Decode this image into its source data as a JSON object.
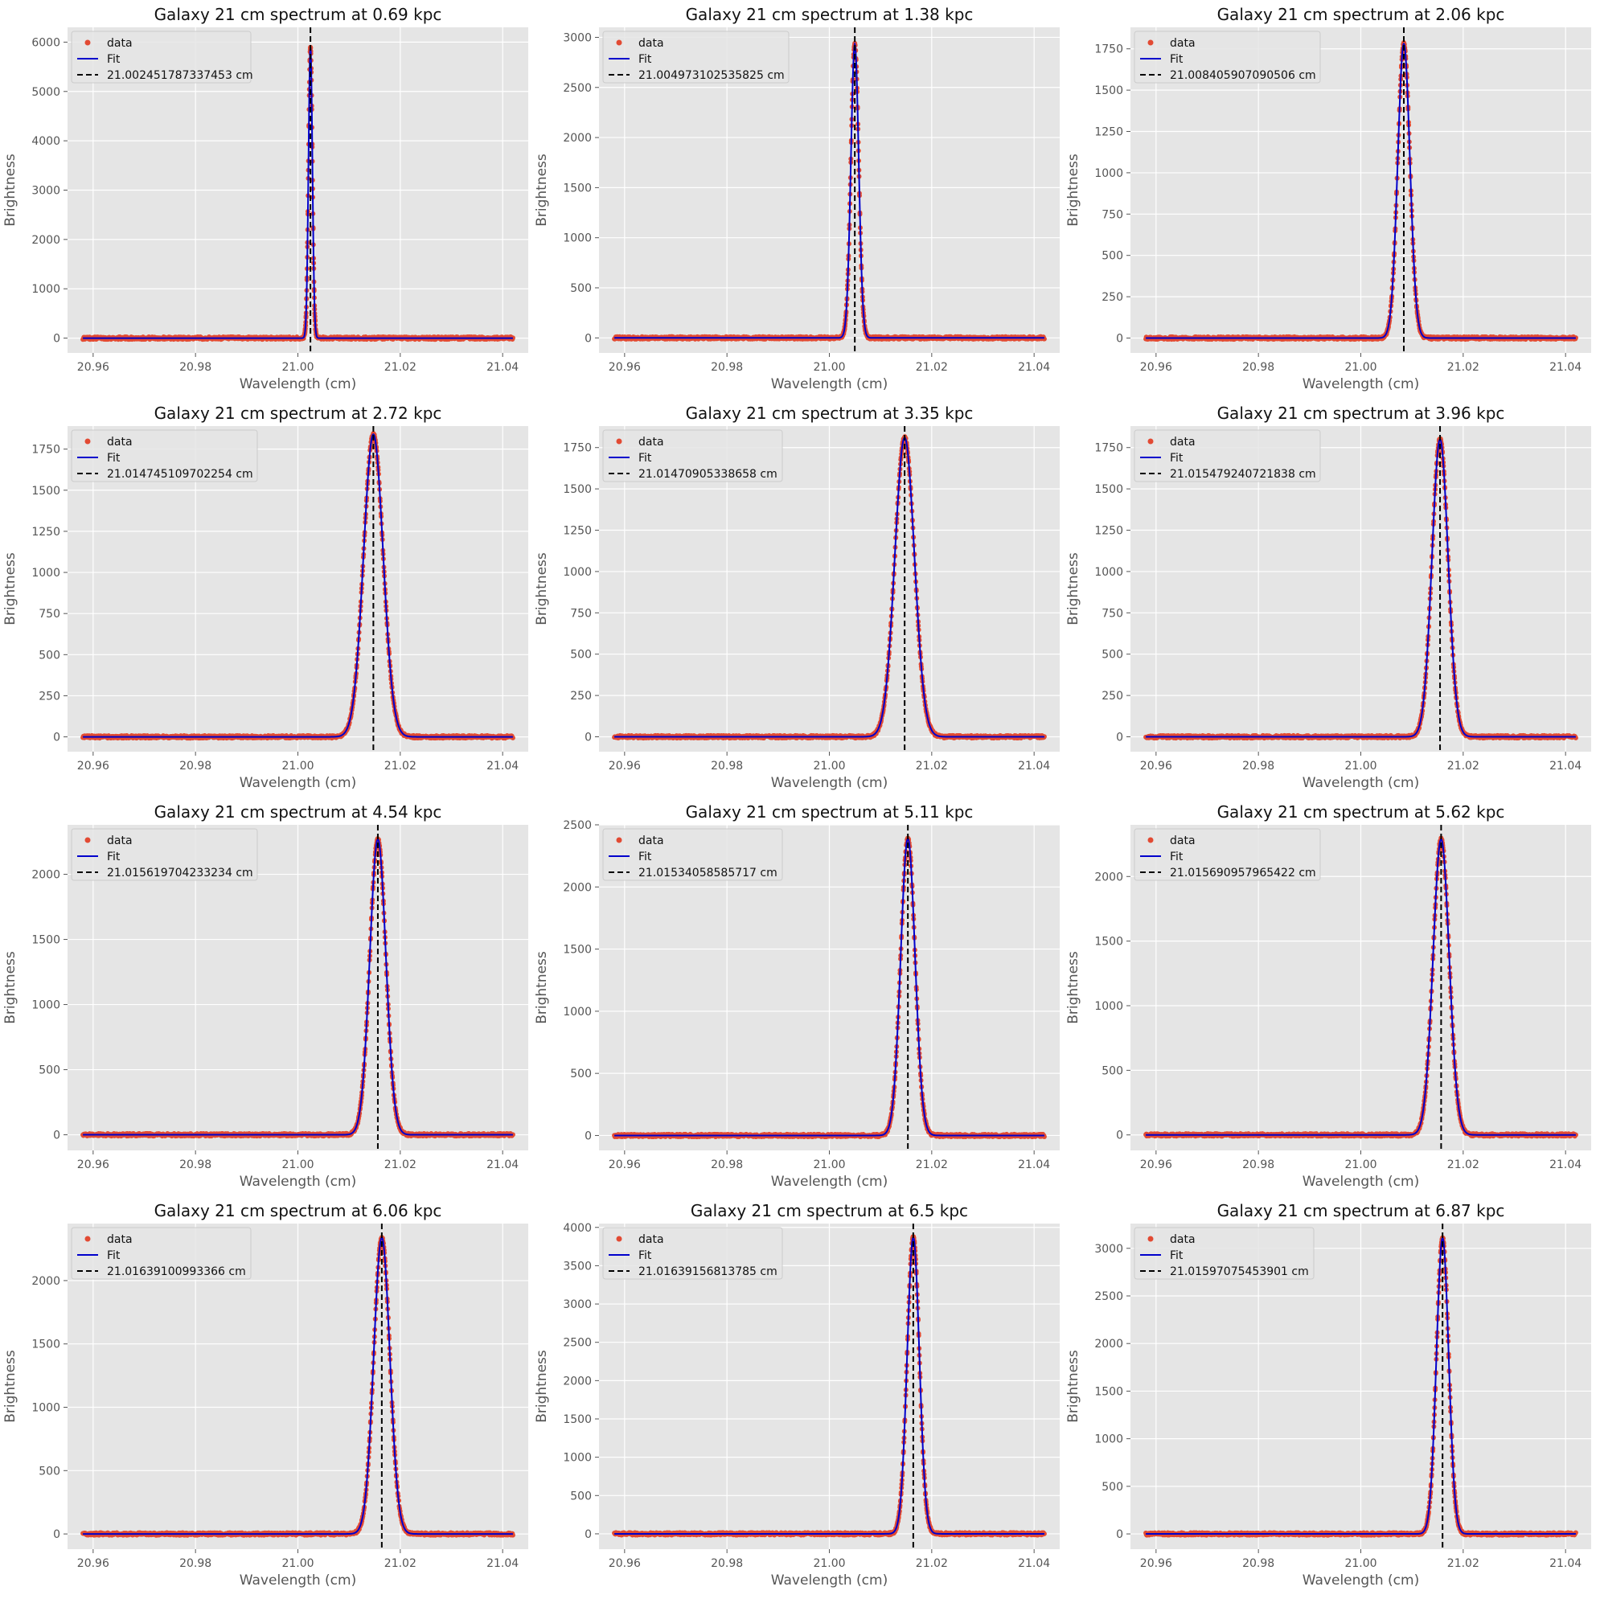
{
  "chart_data": {
    "type": "scatter",
    "shared": {
      "xlabel": "Wavelength (cm)",
      "ylabel": "Brightness",
      "xlim": [
        20.955,
        21.045
      ],
      "xticks": [
        20.96,
        20.98,
        21.0,
        21.02,
        21.04
      ],
      "grid": true,
      "legend_position": "top-left",
      "legend": [
        "data",
        "Fit"
      ],
      "sample_range": [
        20.958,
        21.042
      ],
      "colors": {
        "data": "#E24A33",
        "fit": "#0000CC",
        "center": "#000000",
        "background": "#E5E5E5"
      }
    },
    "panels": [
      {
        "title": "Galaxy 21 cm spectrum at 0.69 kpc",
        "center": 21.002451787337453,
        "center_label": "21.002451787337453 cm",
        "peak": 5900,
        "fwhm": 0.0009,
        "ylim": [
          -300,
          6300
        ],
        "yticks": [
          0,
          1000,
          2000,
          3000,
          4000,
          5000,
          6000
        ]
      },
      {
        "title": "Galaxy 21 cm spectrum at 1.38 kpc",
        "center": 21.004973102535825,
        "center_label": "21.004973102535825 cm",
        "peak": 2930,
        "fwhm": 0.0018,
        "ylim": [
          -150,
          3100
        ],
        "yticks": [
          0,
          500,
          1000,
          1500,
          2000,
          2500,
          3000
        ]
      },
      {
        "title": "Galaxy 21 cm spectrum at 2.06 kpc",
        "center": 21.008405907090506,
        "center_label": "21.008405907090506 cm",
        "peak": 1780,
        "fwhm": 0.0028,
        "ylim": [
          -90,
          1880
        ],
        "yticks": [
          0,
          250,
          500,
          750,
          1000,
          1250,
          1500,
          1750
        ]
      },
      {
        "title": "Galaxy 21 cm spectrum at 2.72 kpc",
        "center": 21.014745109702254,
        "center_label": "21.014745109702254 cm",
        "peak": 1840,
        "fwhm": 0.0045,
        "ylim": [
          -90,
          1890
        ],
        "yticks": [
          0,
          250,
          500,
          750,
          1000,
          1250,
          1500,
          1750
        ]
      },
      {
        "title": "Galaxy 21 cm spectrum at 3.35 kpc",
        "center": 21.01470905338658,
        "center_label": "21.01470905338658 cm",
        "peak": 1810,
        "fwhm": 0.0045,
        "ylim": [
          -90,
          1880
        ],
        "yticks": [
          0,
          250,
          500,
          750,
          1000,
          1250,
          1500,
          1750
        ]
      },
      {
        "title": "Galaxy 21 cm spectrum at 3.96 kpc",
        "center": 21.015479240721838,
        "center_label": "21.015479240721838 cm",
        "peak": 1800,
        "fwhm": 0.0037,
        "ylim": [
          -90,
          1880
        ],
        "yticks": [
          0,
          250,
          500,
          750,
          1000,
          1250,
          1500,
          1750
        ]
      },
      {
        "title": "Galaxy 21 cm spectrum at 4.54 kpc",
        "center": 21.015619704233234,
        "center_label": "21.015619704233234 cm",
        "peak": 2270,
        "fwhm": 0.0037,
        "ylim": [
          -120,
          2380
        ],
        "yticks": [
          0,
          500,
          1000,
          1500,
          2000
        ]
      },
      {
        "title": "Galaxy 21 cm spectrum at 5.11 kpc",
        "center": 21.01534058585717,
        "center_label": "21.01534058585717 cm",
        "peak": 2390,
        "fwhm": 0.0033,
        "ylim": [
          -120,
          2500
        ],
        "yticks": [
          0,
          500,
          1000,
          1500,
          2000,
          2500
        ]
      },
      {
        "title": "Galaxy 21 cm spectrum at 5.62 kpc",
        "center": 21.015690957965422,
        "center_label": "21.015690957965422 cm",
        "peak": 2290,
        "fwhm": 0.0037,
        "ylim": [
          -120,
          2400
        ],
        "yticks": [
          0,
          500,
          1000,
          1500,
          2000
        ]
      },
      {
        "title": "Galaxy 21 cm spectrum at 6.06 kpc",
        "center": 21.01639100993366,
        "center_label": "21.01639100993366 cm",
        "peak": 2340,
        "fwhm": 0.0037,
        "ylim": [
          -120,
          2450
        ],
        "yticks": [
          0,
          500,
          1000,
          1500,
          2000
        ]
      },
      {
        "title": "Galaxy 21 cm spectrum at 6.5 kpc",
        "center": 21.01639156813785,
        "center_label": "21.01639156813785 cm",
        "peak": 3870,
        "fwhm": 0.0028,
        "ylim": [
          -200,
          4050
        ],
        "yticks": [
          0,
          500,
          1000,
          1500,
          2000,
          2500,
          3000,
          3500,
          4000
        ]
      },
      {
        "title": "Galaxy 21 cm spectrum at 6.87 kpc",
        "center": 21.01597075453901,
        "center_label": "21.01597075453901 cm",
        "peak": 3110,
        "fwhm": 0.0028,
        "ylim": [
          -160,
          3260
        ],
        "yticks": [
          0,
          500,
          1000,
          1500,
          2000,
          2500,
          3000
        ]
      }
    ]
  }
}
